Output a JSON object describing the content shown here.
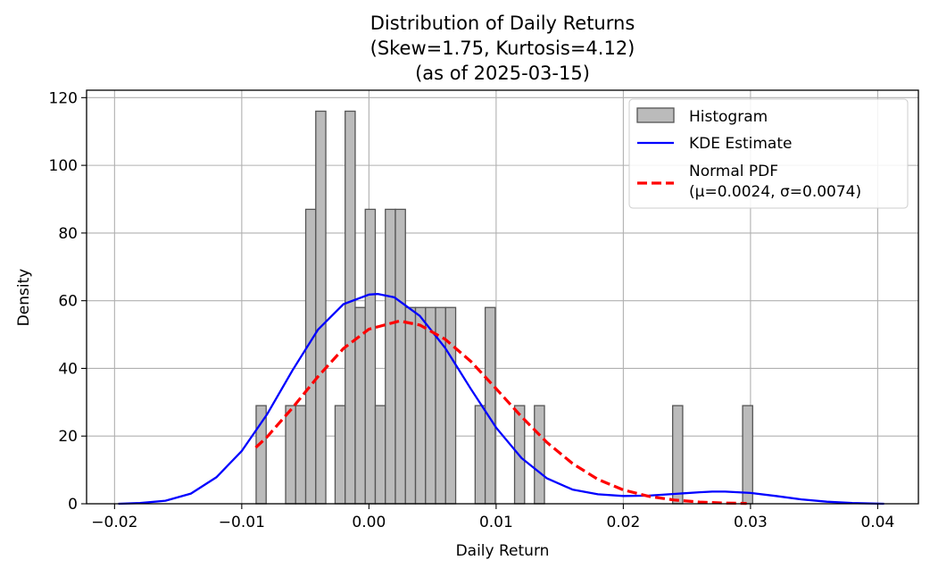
{
  "chart_data": {
    "type": "bar",
    "title_lines": [
      "Distribution of Daily Returns",
      "(Skew=1.75, Kurtosis=4.12)",
      "(as of 2025-03-15)"
    ],
    "xlabel": "Daily Return",
    "ylabel": "Density",
    "xlim": [
      -0.0222,
      0.0432
    ],
    "ylim": [
      0,
      122.2
    ],
    "grid": true,
    "legend_position": "top-right",
    "x_ticks": [
      -0.02,
      -0.01,
      0.0,
      0.01,
      0.02,
      0.03,
      0.04
    ],
    "x_tick_labels": [
      "−0.02",
      "−0.01",
      "0.00",
      "0.01",
      "0.02",
      "0.03",
      "0.04"
    ],
    "y_ticks": [
      0,
      20,
      40,
      60,
      80,
      100,
      120
    ],
    "y_tick_labels": [
      "0",
      "20",
      "40",
      "60",
      "80",
      "100",
      "120"
    ],
    "legend": [
      {
        "label": "Histogram",
        "kind": "box"
      },
      {
        "label": "KDE Estimate",
        "kind": "line"
      },
      {
        "label": "Normal PDF",
        "label2": "(μ=0.0024, σ=0.0074)",
        "kind": "dash"
      }
    ],
    "histogram": {
      "name": "Histogram",
      "color": "#bbbbbb",
      "edge_color": "#555555",
      "bin_width": 0.000789,
      "bars": [
        {
          "x0": -0.00887,
          "height": 29.0
        },
        {
          "x0": -0.00655,
          "height": 29.0
        },
        {
          "x0": -0.00576,
          "height": 29.0
        },
        {
          "x0": -0.00497,
          "height": 87.0
        },
        {
          "x0": -0.00418,
          "height": 116.0
        },
        {
          "x0": -0.00266,
          "height": 29.0
        },
        {
          "x0": -0.00187,
          "height": 116.0
        },
        {
          "x0": -0.00108,
          "height": 58.0
        },
        {
          "x0": -0.00029,
          "height": 87.0
        },
        {
          "x0": 0.0005,
          "height": 29.0
        },
        {
          "x0": 0.00129,
          "height": 87.0
        },
        {
          "x0": 0.00208,
          "height": 87.0
        },
        {
          "x0": 0.00287,
          "height": 58.0
        },
        {
          "x0": 0.00366,
          "height": 58.0
        },
        {
          "x0": 0.00445,
          "height": 58.0
        },
        {
          "x0": 0.00524,
          "height": 58.0
        },
        {
          "x0": 0.00603,
          "height": 58.0
        },
        {
          "x0": 0.00835,
          "height": 29.0
        },
        {
          "x0": 0.00914,
          "height": 58.0
        },
        {
          "x0": 0.01145,
          "height": 29.0
        },
        {
          "x0": 0.01301,
          "height": 29.0
        },
        {
          "x0": 0.02388,
          "height": 29.0
        },
        {
          "x0": 0.02938,
          "height": 29.0
        }
      ]
    },
    "series": [
      {
        "name": "KDE Estimate",
        "color": "#0000ff",
        "style": "solid",
        "x": [
          -0.0197,
          -0.018,
          -0.016,
          -0.014,
          -0.012,
          -0.01,
          -0.008,
          -0.006,
          -0.004,
          -0.002,
          0.0,
          0.0007,
          0.002,
          0.004,
          0.006,
          0.008,
          0.01,
          0.012,
          0.014,
          0.016,
          0.018,
          0.02,
          0.022,
          0.024,
          0.026,
          0.027,
          0.028,
          0.03,
          0.032,
          0.034,
          0.036,
          0.038,
          0.0405
        ],
        "y": [
          0.0,
          0.2,
          0.9,
          3.0,
          7.8,
          15.6,
          26.5,
          39.5,
          51.5,
          59.0,
          61.8,
          62.0,
          61.0,
          55.5,
          46.0,
          34.0,
          22.5,
          13.5,
          7.5,
          4.2,
          2.8,
          2.3,
          2.4,
          2.9,
          3.4,
          3.6,
          3.6,
          3.2,
          2.3,
          1.3,
          0.6,
          0.2,
          0.0
        ]
      },
      {
        "name": "Normal PDF",
        "color": "#ff0000",
        "style": "dashed",
        "x": [
          -0.0089,
          -0.008,
          -0.006,
          -0.004,
          -0.002,
          0.0,
          0.0024,
          0.004,
          0.006,
          0.008,
          0.01,
          0.012,
          0.014,
          0.016,
          0.018,
          0.02,
          0.022,
          0.024,
          0.026,
          0.028,
          0.0297
        ],
        "y": [
          16.6,
          19.8,
          28.4,
          37.6,
          45.9,
          51.6,
          54.0,
          52.8,
          48.6,
          42.1,
          34.0,
          25.7,
          18.1,
          11.9,
          7.2,
          4.1,
          2.2,
          1.1,
          0.5,
          0.2,
          0.1
        ]
      }
    ]
  }
}
